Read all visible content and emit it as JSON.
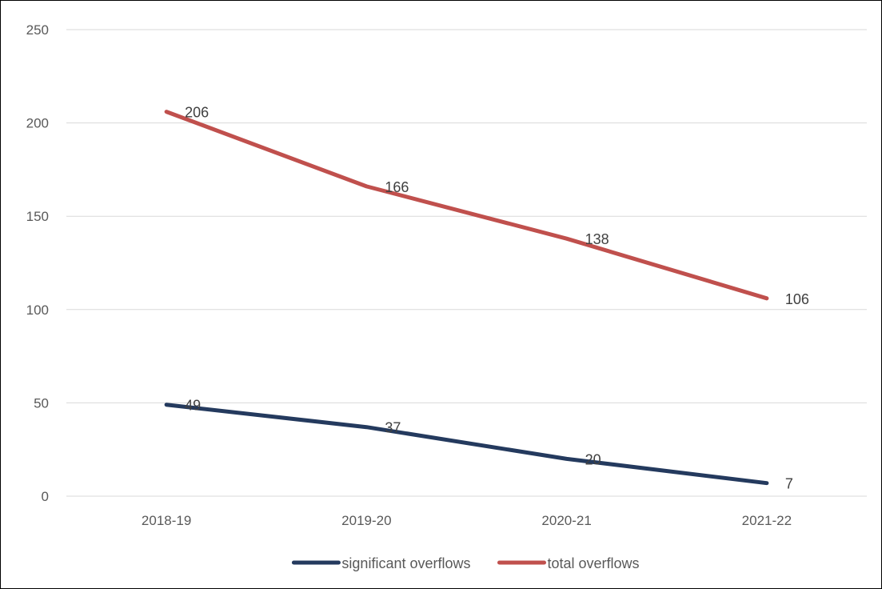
{
  "chart_data": {
    "type": "line",
    "title": "",
    "xlabel": "",
    "ylabel": "",
    "categories": [
      "2018-19",
      "2019-20",
      "2020-21",
      "2021-22"
    ],
    "ylim": [
      0,
      250
    ],
    "yticks": [
      0,
      50,
      100,
      150,
      200,
      250
    ],
    "grid": true,
    "legend_position": "bottom",
    "series": [
      {
        "name": "significant overflows",
        "values": [
          49,
          37,
          20,
          7
        ],
        "color": "#243a5e"
      },
      {
        "name": "total overflows",
        "values": [
          206,
          166,
          138,
          106
        ],
        "color": "#c0504d"
      }
    ]
  }
}
